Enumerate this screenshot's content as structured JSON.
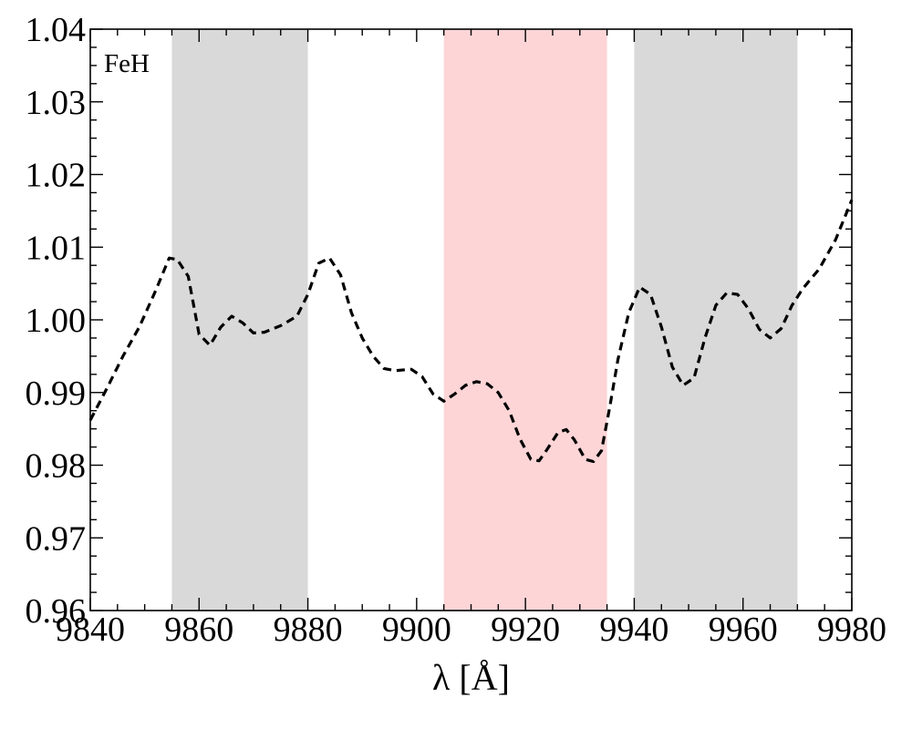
{
  "chart_data": {
    "type": "line",
    "panel_label": "FeH",
    "xlabel": "λ [Å]",
    "ylabel": "",
    "xlim": [
      9840,
      9980
    ],
    "ylim": [
      0.96,
      1.04
    ],
    "xticks": [
      9840,
      9860,
      9880,
      9900,
      9920,
      9940,
      9960,
      9980
    ],
    "xtick_labels": [
      "9840",
      "9860",
      "9880",
      "9900",
      "9920",
      "9940",
      "9960",
      "9980"
    ],
    "yticks": [
      0.96,
      0.97,
      0.98,
      0.99,
      1.0,
      1.01,
      1.02,
      1.03,
      1.04
    ],
    "ytick_labels": [
      "0.96",
      "0.97",
      "0.98",
      "0.99",
      "1.00",
      "1.01",
      "1.02",
      "1.03",
      "1.04"
    ],
    "grid": false,
    "bands": [
      {
        "from": 9855,
        "to": 9880,
        "color": "#d9d9d9"
      },
      {
        "from": 9905,
        "to": 9935,
        "color": "#fdd5d7"
      },
      {
        "from": 9940,
        "to": 9970,
        "color": "#d9d9d9"
      }
    ],
    "series": [
      {
        "style": "dashed",
        "color": "#000000",
        "x": [
          9840,
          9843,
          9846,
          9849,
          9852,
          9854.5,
          9856,
          9858,
          9860,
          9862,
          9864,
          9866,
          9868,
          9870,
          9872,
          9875,
          9878,
          9880,
          9882,
          9884,
          9886,
          9888,
          9890,
          9892,
          9894,
          9896,
          9899,
          9901,
          9903,
          9905,
          9907,
          9909,
          9911,
          9913,
          9915,
          9917,
          9919,
          9921,
          9922.5,
          9924,
          9926,
          9927.5,
          9929,
          9931,
          9932.5,
          9934,
          9935.5,
          9937,
          9939,
          9941,
          9943,
          9945,
          9947,
          9949,
          9951,
          9953,
          9955,
          9957,
          9959,
          9961,
          9963,
          9965,
          9967,
          9969,
          9971,
          9974,
          9977,
          9980
        ],
        "y": [
          0.9862,
          0.9905,
          0.995,
          0.999,
          1.004,
          1.0085,
          1.0083,
          1.006,
          0.998,
          0.9965,
          0.999,
          1.0005,
          0.9996,
          0.9982,
          0.9983,
          0.9992,
          1.0005,
          1.0035,
          1.0078,
          1.0085,
          1.0062,
          1.001,
          0.9975,
          0.995,
          0.9933,
          0.993,
          0.9932,
          0.9922,
          0.9898,
          0.9888,
          0.9898,
          0.991,
          0.9915,
          0.9912,
          0.99,
          0.9875,
          0.9836,
          0.9808,
          0.9806,
          0.9822,
          0.9845,
          0.9849,
          0.9835,
          0.9808,
          0.9805,
          0.982,
          0.988,
          0.9945,
          1.001,
          1.0045,
          1.0035,
          0.999,
          0.9935,
          0.991,
          0.992,
          0.9975,
          1.002,
          1.0037,
          1.0035,
          1.0015,
          0.9987,
          0.9975,
          0.9988,
          1.002,
          1.0043,
          1.007,
          1.011,
          1.0165
        ]
      }
    ]
  }
}
